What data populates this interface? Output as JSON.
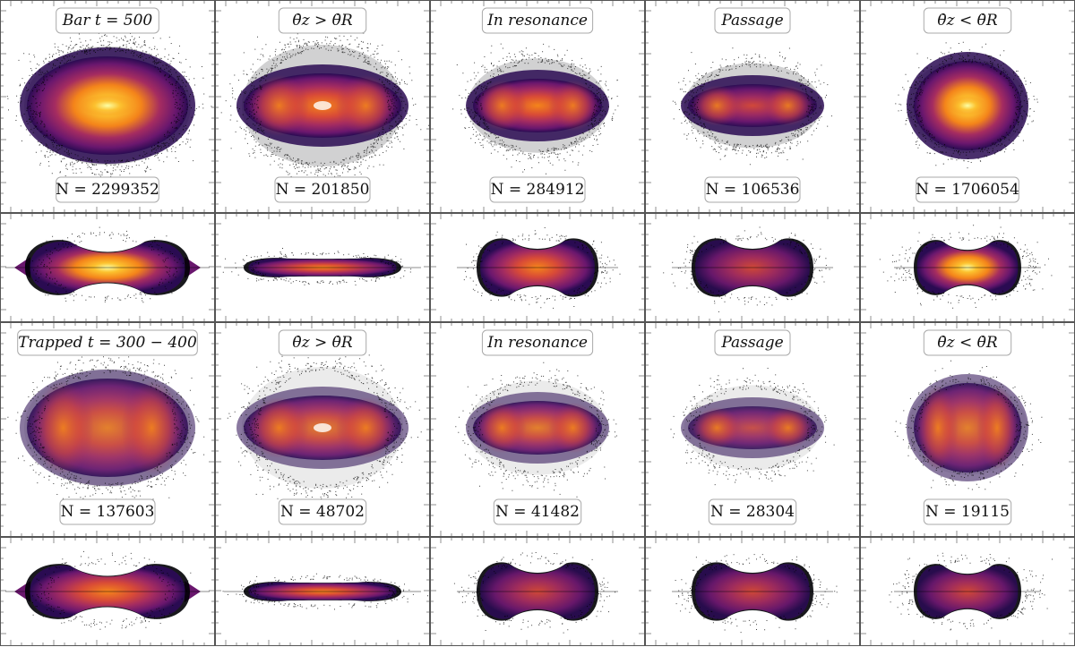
{
  "figure": {
    "rows": [
      {
        "id": "bar",
        "panels": [
          {
            "title": "Bar t = 500",
            "count": "N = 2299352"
          },
          {
            "title": "θ̇z > θ̇R",
            "count": "N = 201850"
          },
          {
            "title": "In resonance",
            "count": "N = 284912"
          },
          {
            "title": "Passage",
            "count": "N = 106536"
          },
          {
            "title": "θ̇z < θ̇R",
            "count": "N = 1706054"
          }
        ]
      },
      {
        "id": "trapped",
        "panels": [
          {
            "title": "Trapped t = 300 − 400",
            "count": "N = 137603"
          },
          {
            "title": "θ̇z > θ̇R",
            "count": "N = 48702"
          },
          {
            "title": "In resonance",
            "count": "N = 41482"
          },
          {
            "title": "Passage",
            "count": "N = 28304"
          },
          {
            "title": "θ̇z < θ̇R",
            "count": "N = 19115"
          }
        ]
      }
    ],
    "colormap": [
      "#000004",
      "#2a0b52",
      "#6a176e",
      "#a52c60",
      "#d84a37",
      "#f4841a",
      "#fcc12e",
      "#fcffa4"
    ]
  }
}
